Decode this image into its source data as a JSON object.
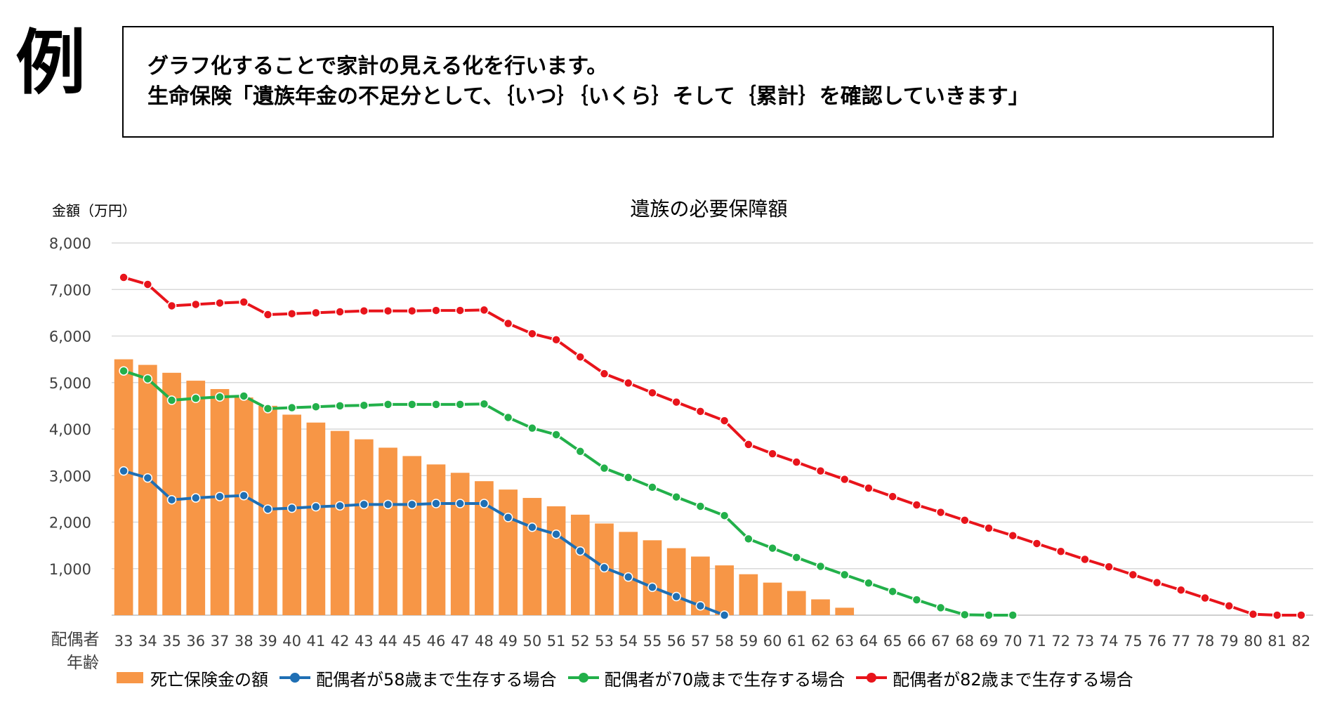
{
  "heading": {
    "example_mark": "例",
    "line1": "グラフ化することで家計の見える化を行います。",
    "line2": "生命保険「遺族年金の不足分として、｛いつ｝｛いくら｝そして｛累計｝を確認していきます」"
  },
  "chart_data": {
    "type": "bar+line",
    "title": "遺族の必要保障額",
    "ylabel": "金額（万円）",
    "xlabel": "配偶者\n年齢",
    "ylim": [
      0,
      8000
    ],
    "yticks": [
      "",
      "1,000",
      "2,000",
      "3,000",
      "4,000",
      "5,000",
      "6,000",
      "7,000",
      "8,000"
    ],
    "categories": [
      "33",
      "34",
      "35",
      "36",
      "37",
      "38",
      "39",
      "40",
      "41",
      "42",
      "43",
      "44",
      "45",
      "46",
      "47",
      "48",
      "49",
      "50",
      "51",
      "52",
      "53",
      "54",
      "55",
      "56",
      "57",
      "58",
      "59",
      "60",
      "61",
      "62",
      "63",
      "64",
      "65",
      "66",
      "67",
      "68",
      "69",
      "70",
      "71",
      "72",
      "73",
      "74",
      "75",
      "76",
      "77",
      "78",
      "79",
      "80",
      "81",
      "82"
    ],
    "grid": true,
    "legend_position": "bottom",
    "series": [
      {
        "name": "死亡保険金の額",
        "type": "bar",
        "color": "#F79646",
        "values": [
          5500,
          5380,
          5210,
          5040,
          4860,
          4680,
          4500,
          4310,
          4140,
          3960,
          3780,
          3600,
          3420,
          3240,
          3060,
          2880,
          2700,
          2520,
          2340,
          2160,
          1970,
          1790,
          1610,
          1440,
          1260,
          1070,
          880,
          700,
          520,
          340,
          160,
          null,
          null,
          null,
          null,
          null,
          null,
          null,
          null,
          null,
          null,
          null,
          null,
          null,
          null,
          null,
          null,
          null,
          null,
          null
        ]
      },
      {
        "name": "配偶者が58歳まで生存する場合",
        "type": "line",
        "color": "#1F6FB4",
        "values": [
          3100,
          2950,
          2480,
          2520,
          2550,
          2570,
          2280,
          2300,
          2330,
          2350,
          2380,
          2380,
          2380,
          2400,
          2400,
          2400,
          2100,
          1890,
          1740,
          1380,
          1020,
          820,
          600,
          400,
          200,
          0,
          null,
          null,
          null,
          null,
          null,
          null,
          null,
          null,
          null,
          null,
          null,
          null,
          null,
          null,
          null,
          null,
          null,
          null,
          null,
          null,
          null,
          null,
          null,
          null
        ]
      },
      {
        "name": "配偶者が70歳まで生存する場合",
        "type": "line",
        "color": "#22B04A",
        "values": [
          5250,
          5080,
          4620,
          4660,
          4690,
          4710,
          4440,
          4460,
          4480,
          4500,
          4510,
          4530,
          4530,
          4530,
          4530,
          4540,
          4250,
          4020,
          3880,
          3520,
          3160,
          2960,
          2750,
          2540,
          2340,
          2140,
          1640,
          1440,
          1240,
          1050,
          870,
          690,
          510,
          330,
          160,
          10,
          0,
          0,
          null,
          null,
          null,
          null,
          null,
          null,
          null,
          null,
          null,
          null,
          null,
          null
        ]
      },
      {
        "name": "配偶者が82歳まで生存する場合",
        "type": "line",
        "color": "#E8141B",
        "values": [
          7260,
          7110,
          6650,
          6680,
          6710,
          6730,
          6460,
          6480,
          6500,
          6520,
          6540,
          6540,
          6540,
          6550,
          6550,
          6560,
          6270,
          6050,
          5920,
          5550,
          5190,
          4990,
          4780,
          4580,
          4380,
          4180,
          3670,
          3470,
          3290,
          3100,
          2920,
          2730,
          2550,
          2370,
          2210,
          2040,
          1870,
          1710,
          1540,
          1370,
          1200,
          1040,
          870,
          700,
          540,
          370,
          200,
          20,
          0,
          0
        ]
      }
    ]
  }
}
